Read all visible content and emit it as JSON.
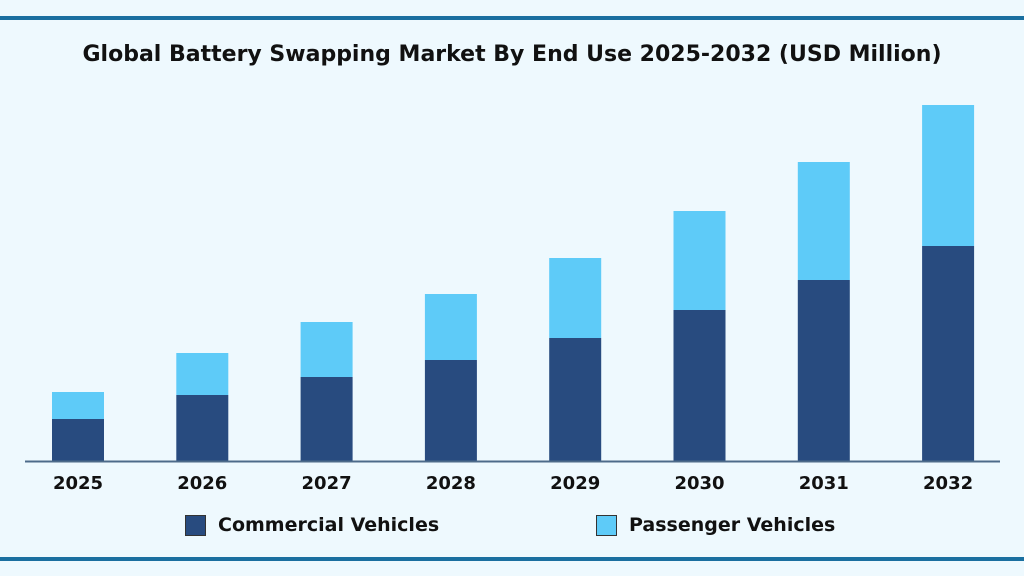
{
  "chart_data": {
    "type": "bar",
    "stacked": true,
    "title": "Global Battery Swapping Market By End Use 2025-2032 (USD Million)",
    "xlabel": "",
    "ylabel": "",
    "categories": [
      "2025",
      "2026",
      "2027",
      "2028",
      "2029",
      "2030",
      "2031",
      "2032"
    ],
    "series": [
      {
        "name": "Commercial Vehicles",
        "color": "#284b7f",
        "values": [
          42,
          66,
          84,
          101,
          123,
          151,
          181,
          215
        ]
      },
      {
        "name": "Passenger Vehicles",
        "color": "#5ecbf8",
        "values": [
          27,
          42,
          55,
          66,
          80,
          99,
          118,
          141
        ]
      }
    ],
    "ylim": [
      0,
      360
    ],
    "grid": false,
    "legend": "bottom"
  }
}
